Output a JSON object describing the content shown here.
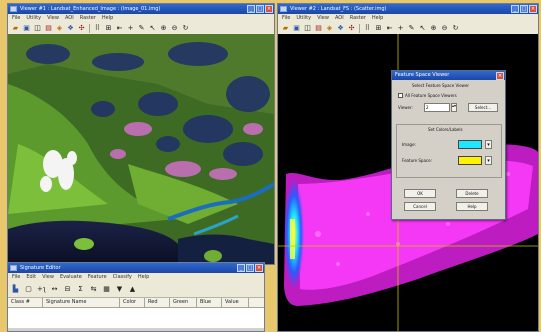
{
  "colors": {
    "titlebar": "#2063d0",
    "desktop": "#e9c86d",
    "highlight": "#1ee7ff",
    "feature": "#fff200",
    "scatter": "#ff2bff"
  },
  "left_viewer": {
    "title": "Viewer #1 : Landsat_Enhanced_Image : (Image_01.img)",
    "menu": [
      "File",
      "Utility",
      "View",
      "AOI",
      "Raster",
      "Help"
    ]
  },
  "right_viewer": {
    "title": "Viewer #2 : Landsat_FS : (Scatter.img)",
    "menu": [
      "File",
      "Utility",
      "View",
      "AOI",
      "Raster",
      "Help"
    ]
  },
  "toolbar_icons": [
    "open-icon",
    "save-icon",
    "print-icon",
    "clear-icon",
    "layer-icon",
    "info-icon",
    "zoom-icon",
    "select-icon",
    "grid-icon",
    "pan-icon",
    "cross-icon",
    "inquire-icon",
    "arrow-icon",
    "zoom-in-icon",
    "zoom-out-icon",
    "rotate-icon"
  ],
  "dialog": {
    "title": "Feature Space Viewer",
    "subtitle": "Select Feature Space Viewer",
    "checkbox_label": "All Feature Space Viewers",
    "viewer_label": "Viewer:",
    "viewer_value": "2",
    "select_label": "Select...",
    "group_label": "Set Colors/Labels",
    "highlight_label": "Image:",
    "feature_label": "Feature Space:",
    "ok_label": "OK",
    "delete_label": "Delete",
    "cancel_label": "Cancel",
    "help_label": "Help"
  },
  "bottom_window": {
    "title": "Signature Editor",
    "menu": [
      "File",
      "Edit",
      "View",
      "Evaluate",
      "Feature",
      "Classify",
      "Help"
    ],
    "columns": [
      "Class #",
      "Signature Name",
      "Color",
      "Red",
      "Green",
      "Blue",
      "Value"
    ]
  }
}
